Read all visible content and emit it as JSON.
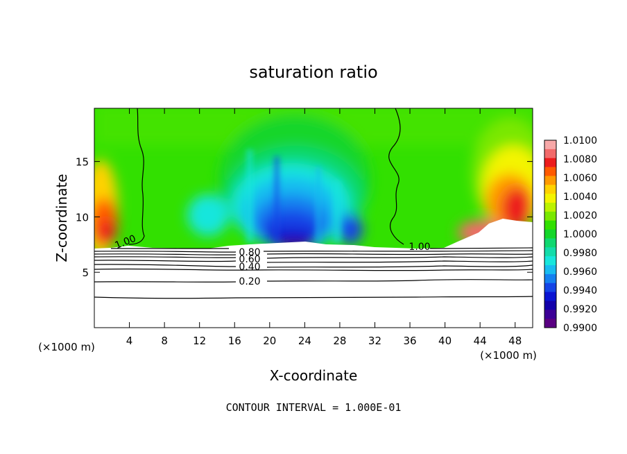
{
  "chart_data": {
    "type": "heatmap",
    "title": "saturation ratio",
    "xlabel": "X-coordinate",
    "ylabel": "Z-coordinate",
    "x_unit_left": "(×1000 m)",
    "x_unit_right": "(×1000 m)",
    "xlim": [
      0,
      50
    ],
    "ylim": [
      0,
      19.8
    ],
    "x_ticks": [
      4,
      8,
      12,
      16,
      20,
      24,
      28,
      32,
      36,
      40,
      44,
      48
    ],
    "y_ticks": [
      5,
      10,
      15
    ],
    "footer": "CONTOUR INTERVAL = 1.000E-01",
    "colorbar": {
      "ticks": [
        "1.0100",
        "1.0080",
        "1.0060",
        "1.0040",
        "1.0020",
        "1.0000",
        "0.9980",
        "0.9960",
        "0.9940",
        "0.9920",
        "0.9900"
      ],
      "colors": [
        "#f7a8a8",
        "#f26a6a",
        "#ec1c1c",
        "#ff5a00",
        "#ff9a00",
        "#ffd200",
        "#f4f400",
        "#bcf200",
        "#7ae800",
        "#32e000",
        "#14d62a",
        "#10d870",
        "#14dcaa",
        "#18e6dc",
        "#18bcf0",
        "#1480f0",
        "#1444e6",
        "#0a14d2",
        "#1200aa",
        "#3c0096",
        "#5a0082"
      ]
    },
    "contour_labels": [
      "1.00",
      "1.00",
      "0.80",
      "0.60",
      "0.40",
      "0.20"
    ],
    "regions": [
      {
        "x": [
          0,
          4.5
        ],
        "z": [
          7.2,
          16
        ],
        "value": 1.007
      },
      {
        "x": [
          14,
          31
        ],
        "z": [
          7.2,
          14
        ],
        "value": 0.992
      },
      {
        "x": [
          38,
          50
        ],
        "z": [
          7.5,
          16
        ],
        "value": 1.005
      },
      {
        "x": [
          5,
          13
        ],
        "z": [
          8,
          19.8
        ],
        "value": 0.9995
      },
      {
        "x": [
          33,
          40
        ],
        "z": [
          8,
          19.8
        ],
        "value": 0.9997
      }
    ]
  }
}
